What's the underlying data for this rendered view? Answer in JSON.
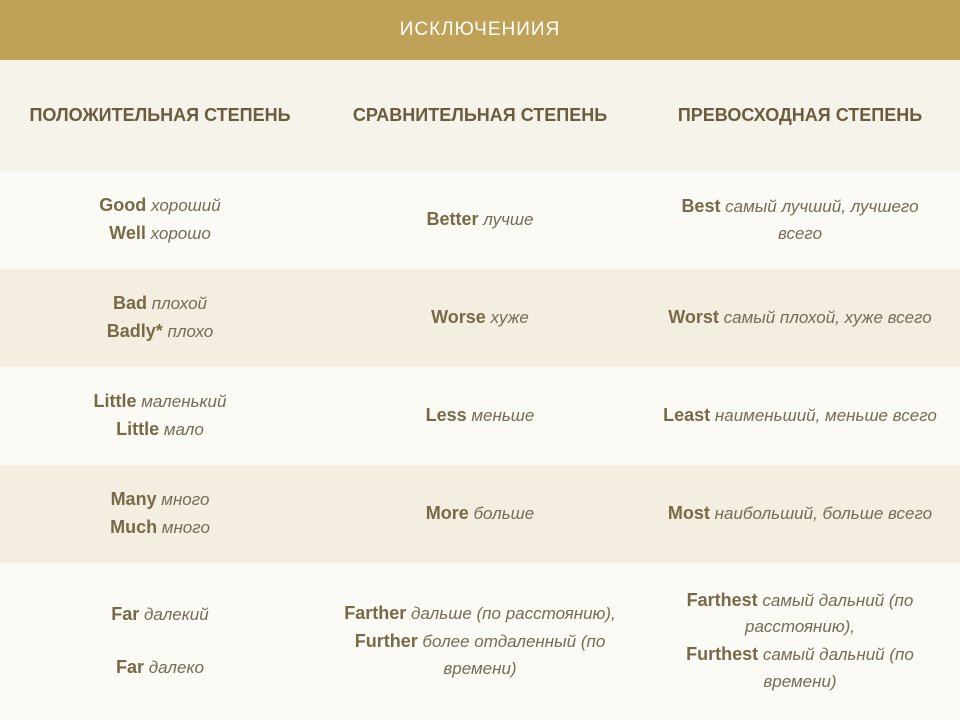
{
  "title": "ИСКЛЮЧЕНИИЯ",
  "headers": {
    "positive": "ПОЛОЖИТЕЛЬНАЯ СТЕПЕНЬ",
    "comparative": "СРАВНИТЕЛЬНАЯ СТЕПЕНЬ",
    "superlative": "ПРЕВОСХОДНАЯ СТЕПЕНЬ"
  },
  "rows": [
    {
      "pos": [
        [
          "Good",
          "хороший"
        ],
        [
          "Well",
          "хорошо"
        ]
      ],
      "comp": [
        [
          "Better",
          "лучше"
        ]
      ],
      "sup": [
        [
          "Best",
          "самый лучший, лучшего всего"
        ]
      ]
    },
    {
      "pos": [
        [
          "Bad",
          "плохой"
        ],
        [
          "Badly*",
          "плохо"
        ]
      ],
      "comp": [
        [
          "Worse",
          "хуже"
        ]
      ],
      "sup": [
        [
          "Worst",
          "самый плохой, хуже всего"
        ]
      ]
    },
    {
      "pos": [
        [
          "Little",
          "маленький"
        ],
        [
          "Little",
          "мало"
        ]
      ],
      "comp": [
        [
          "Less",
          "меньше"
        ]
      ],
      "sup": [
        [
          "Least",
          "наименьший, меньше всего"
        ]
      ]
    },
    {
      "pos": [
        [
          "Many",
          "много"
        ],
        [
          "Much",
          "много"
        ]
      ],
      "comp": [
        [
          "More",
          "больше"
        ]
      ],
      "sup": [
        [
          "Most",
          "наибольший, больше всего"
        ]
      ]
    },
    {
      "pos": [
        [
          "Far",
          "далекий"
        ],
        [
          "",
          ""
        ],
        [
          "Far",
          "далеко"
        ]
      ],
      "comp": [
        [
          "Farther",
          "дальше (по расстоянию),"
        ],
        [
          "Further",
          "более отдаленный (по времени)"
        ]
      ],
      "sup": [
        [
          "Farthest",
          "самый дальний (по расстоянию),"
        ],
        [
          "Furthest",
          "самый дальний (по времени)"
        ]
      ]
    }
  ],
  "colors": {
    "title_bg": "#bfa257",
    "title_text": "#ffffff",
    "header_bg": "#f6f3eb",
    "header_text": "#6a5d3e",
    "light_bg": "#fbfaf5",
    "dark_bg": "#f3eee0",
    "en_color": "#786a47",
    "ru_color": "#756b56"
  }
}
